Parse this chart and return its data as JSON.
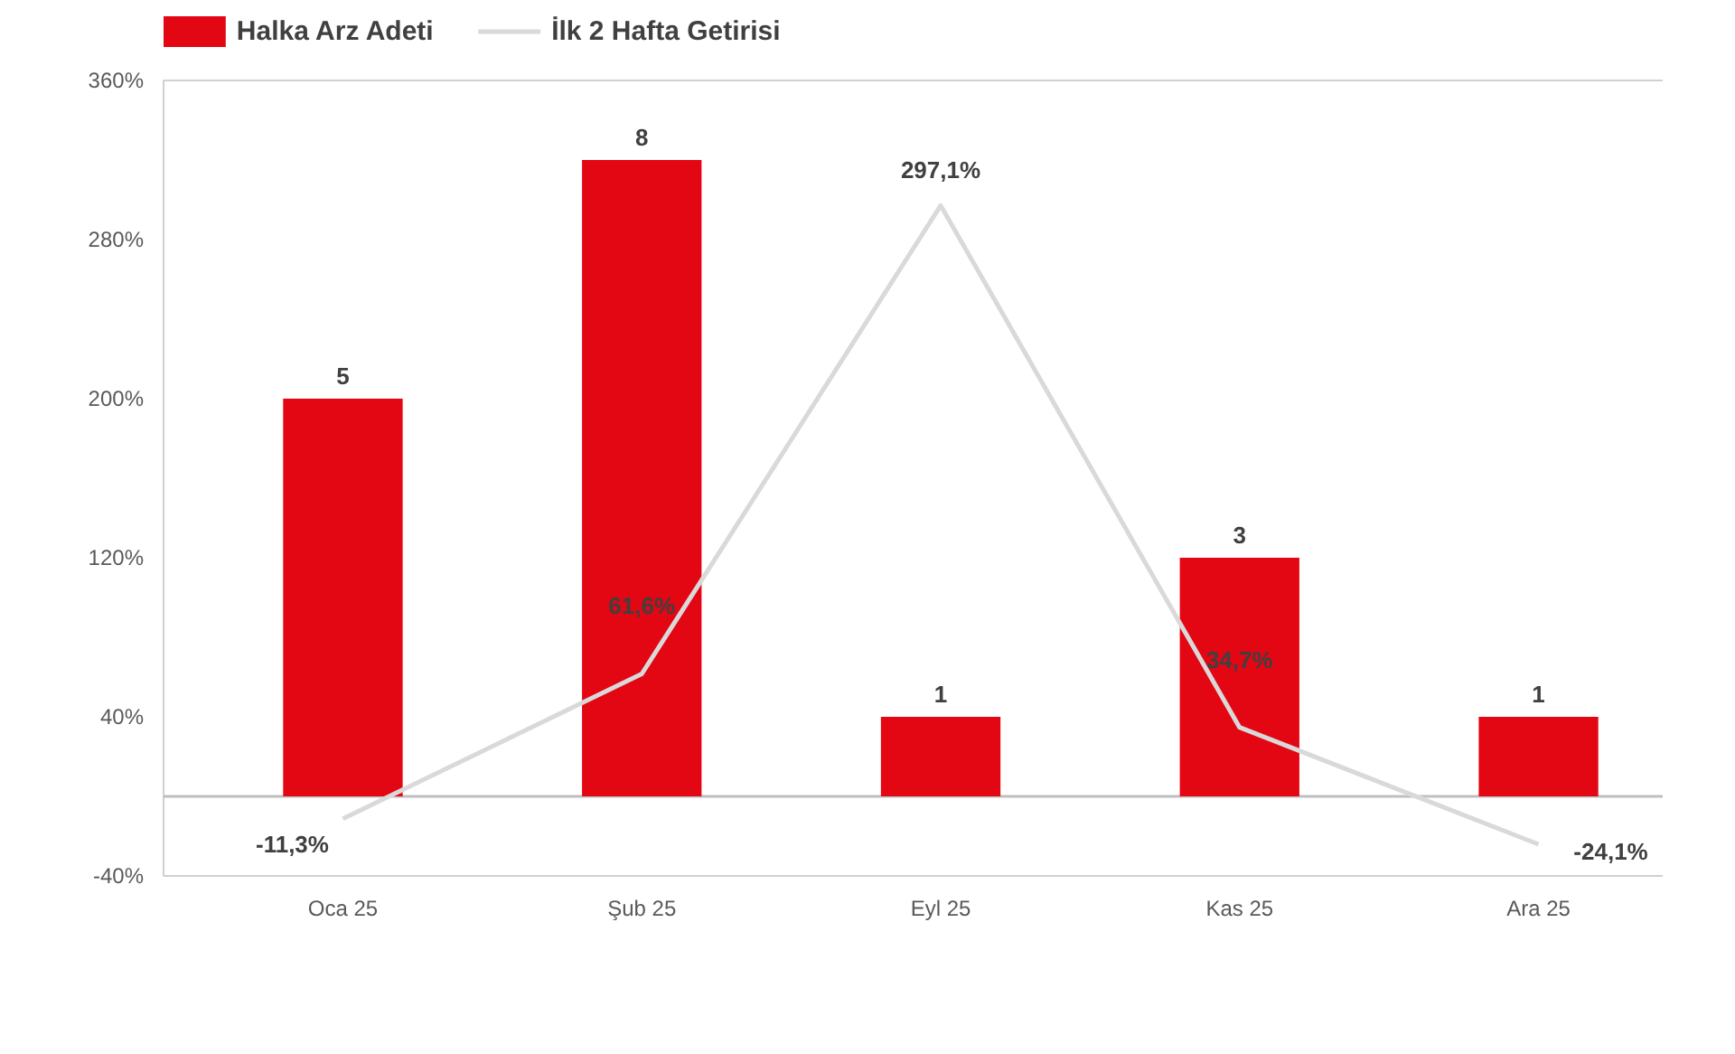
{
  "chart_data": {
    "type": "bar",
    "categories": [
      "Oca 25",
      "Şub 25",
      "Eyl 25",
      "Kas 25",
      "Ara 25"
    ],
    "series": [
      {
        "name": "Halka Arz Adeti",
        "axis": "y2",
        "color": "#e30613",
        "values": [
          5,
          8,
          1,
          3,
          1
        ],
        "value_labels": [
          "5",
          "8",
          "1",
          "3",
          "1"
        ]
      },
      {
        "name": "İlk 2 Hafta Getirisi",
        "type": "line",
        "axis": "y",
        "color": "#d9d9d9",
        "values": [
          -11.3,
          61.6,
          297.1,
          34.7,
          -24.1
        ],
        "value_labels": [
          "-11,3%",
          "61,6%",
          "297,1%",
          "34,7%",
          "-24,1%"
        ]
      }
    ],
    "ylim": [
      -40,
      360
    ],
    "yticks": [
      {
        "value": -40,
        "label": "-40%"
      },
      {
        "value": 40,
        "label": "40%"
      },
      {
        "value": 120,
        "label": "120%"
      },
      {
        "value": 200,
        "label": "200%"
      },
      {
        "value": 280,
        "label": "280%"
      },
      {
        "value": 360,
        "label": "360%"
      }
    ],
    "y2lim": [
      -1,
      9
    ],
    "ref_lines": [
      {
        "axis": "y",
        "value": 0,
        "color": "#bfbfbf"
      }
    ],
    "grid": false,
    "legend": "top left",
    "marker": "none",
    "line_style": "solid"
  }
}
